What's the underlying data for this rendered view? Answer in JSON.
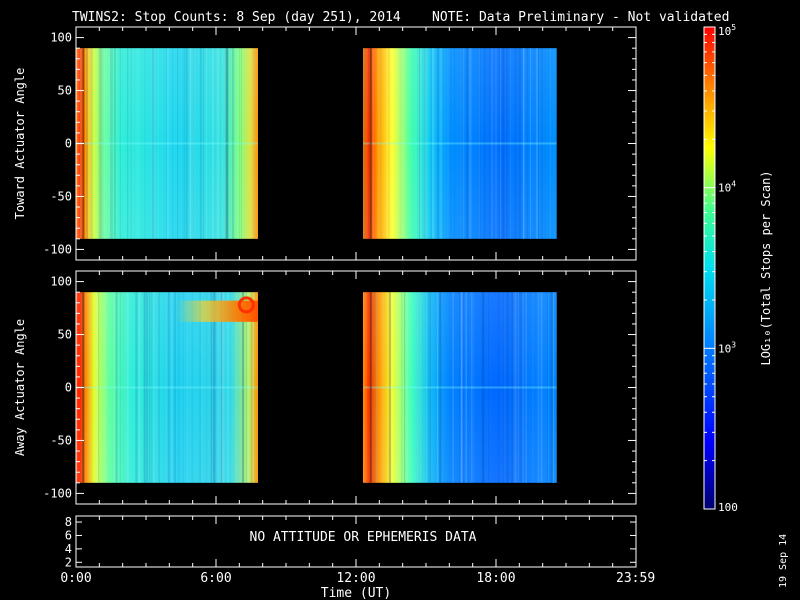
{
  "header": {
    "title": "TWINS2: Stop Counts:  8 Sep (day 251), 2014",
    "note": "NOTE: Data Preliminary - Not validated",
    "note_color": "#ff2020"
  },
  "side_label": "19 Sep 14",
  "chart_data": [
    {
      "type": "heatmap",
      "panel": "toward",
      "ylabel": "Toward Actuator Angle",
      "ylim": [
        -110,
        110
      ],
      "yticks": [
        100,
        50,
        0,
        -50,
        -100
      ],
      "xlim_hours": [
        0,
        24
      ],
      "data_segments_hours": [
        [
          0.0,
          7.8
        ],
        [
          12.3,
          20.6
        ]
      ],
      "data_angle_range": [
        -90,
        90
      ],
      "tone": "Cyan-green dominant in the first segment; blue dominant in the second segment after ~14:30, with an orange-red edge at the start of each segment"
    },
    {
      "type": "heatmap",
      "panel": "away",
      "ylabel": "Away Actuator Angle",
      "ylim": [
        -110,
        110
      ],
      "yticks": [
        100,
        50,
        0,
        -50,
        -100
      ],
      "xlim_hours": [
        0,
        24
      ],
      "data_segments_hours": [
        [
          0.0,
          7.8
        ],
        [
          12.3,
          20.6
        ]
      ],
      "data_angle_range": [
        -90,
        90
      ],
      "tone": "Similar to the toward panel; an orange-red band near +70° around 04:30–07:30 in the first segment"
    },
    {
      "type": "table",
      "panel": "attitude",
      "yticks": [
        8,
        6,
        4,
        2
      ],
      "message": "NO ATTITUDE OR EPHEMERIS DATA"
    }
  ],
  "x_axis": {
    "ticks": [
      {
        "label": "0:00",
        "hour": 0
      },
      {
        "label": "6:00",
        "hour": 6
      },
      {
        "label": "12:00",
        "hour": 12
      },
      {
        "label": "18:00",
        "hour": 18
      },
      {
        "label": "23:59",
        "hour": 23.983
      }
    ],
    "label": "Time (UT)"
  },
  "colorbar": {
    "scale": "log",
    "range": [
      100,
      100000
    ],
    "labels": [
      {
        "text": "10",
        "exp": "5",
        "value": 100000
      },
      {
        "text": "10",
        "exp": "4",
        "value": 10000
      },
      {
        "text": "10",
        "exp": "3",
        "value": 1000
      },
      {
        "text": "100",
        "exp": "",
        "value": 100
      }
    ],
    "title": "LOG₁₀(Total Stops per Scan)"
  }
}
